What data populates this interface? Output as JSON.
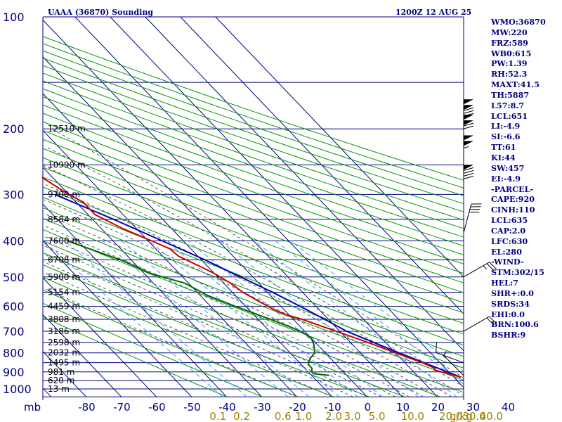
{
  "header": {
    "title": "UAAA (36870) Sounding",
    "valid_time": "1200Z 12 AUG 25"
  },
  "indices": [
    "WMO:36870",
    "MW:220",
    "FRZ:589",
    "WB0:615",
    "PW:1.39",
    "RH:52.3",
    "MAXT:41.5",
    "TH:5887",
    "L57:8.7",
    "LCL:651",
    "LI:-4.9",
    "SI:-6.6",
    "TT:61",
    "KI:44",
    "SW:457",
    "EI:-4.9",
    "-PARCEL-",
    "CAPE:920",
    "CINH:110",
    "LCL:635",
    "CAP:2.0",
    "LFC:630",
    "EL:280",
    "-WIND-",
    "STM:302/15",
    "HEL:7",
    "SHR+:0.0",
    "SRDS:34",
    "EHI:0.0",
    "BRN:100.6",
    "BSHR:9"
  ],
  "colors": {
    "isobar": "#000080",
    "isotherm": "#000080",
    "dry_adiabat": "#009900",
    "moist_adiabat": "#555555",
    "mixing_ratio": "#3399ff",
    "temperature": "#cc0000",
    "dewpoint": "#006600",
    "parcel": "#0000bb",
    "wind": "#000000"
  },
  "chart_data": {
    "type": "skew-t log-p",
    "title": "UAAA (36870) Sounding",
    "xlabel": "",
    "ylabel": "mb",
    "pressure_labels": [
      100,
      200,
      300,
      400,
      500,
      600,
      700,
      800,
      900,
      1000
    ],
    "temperature_ticks": [
      -80,
      -70,
      -60,
      -50,
      -40,
      -30,
      -20,
      -10,
      0,
      10,
      20,
      30,
      40
    ],
    "mixing_ratio_labels": [
      "0.1",
      "0.2",
      "0.6",
      "1.0",
      "2.0",
      "3.0",
      "5.0",
      "10.0",
      "20.0",
      "30.0",
      "40.0"
    ],
    "mixing_ratio_unit": "g/kg",
    "height_labels": [
      {
        "p": 200,
        "text": "12510 m"
      },
      {
        "p": 250,
        "text": "10990 m"
      },
      {
        "p": 300,
        "text": "9700 m"
      },
      {
        "p": 350,
        "text": "8584 m"
      },
      {
        "p": 400,
        "text": "7600 m"
      },
      {
        "p": 450,
        "text": "6708 m"
      },
      {
        "p": 500,
        "text": "5900 m"
      },
      {
        "p": 550,
        "text": "5154 m"
      },
      {
        "p": 600,
        "text": "4459 m"
      },
      {
        "p": 650,
        "text": "3808 m"
      },
      {
        "p": 700,
        "text": "3186 m"
      },
      {
        "p": 750,
        "text": "2598 m"
      },
      {
        "p": 800,
        "text": "2032 m"
      },
      {
        "p": 850,
        "text": "1495 m"
      },
      {
        "p": 900,
        "text": "981 m"
      },
      {
        "p": 950,
        "text": "620 m"
      },
      {
        "p": 1000,
        "text": "13 m"
      }
    ],
    "temperature_profile": [
      {
        "p": 200,
        "t": -45
      },
      {
        "p": 210,
        "t": -44
      },
      {
        "p": 230,
        "t": -41
      },
      {
        "p": 250,
        "t": -37
      },
      {
        "p": 270,
        "t": -33
      },
      {
        "p": 290,
        "t": -31
      },
      {
        "p": 300,
        "t": -30
      },
      {
        "p": 315,
        "t": -28
      },
      {
        "p": 340,
        "t": -28
      },
      {
        "p": 370,
        "t": -24
      },
      {
        "p": 400,
        "t": -19
      },
      {
        "p": 420,
        "t": -16
      },
      {
        "p": 440,
        "t": -15.5
      },
      {
        "p": 470,
        "t": -12
      },
      {
        "p": 490,
        "t": -10
      },
      {
        "p": 520,
        "t": -8
      },
      {
        "p": 550,
        "t": -7
      },
      {
        "p": 580,
        "t": -5
      },
      {
        "p": 610,
        "t": -3
      },
      {
        "p": 630,
        "t": -1
      },
      {
        "p": 650,
        "t": 2.5
      },
      {
        "p": 700,
        "t": 9
      },
      {
        "p": 750,
        "t": 15
      },
      {
        "p": 800,
        "t": 20
      },
      {
        "p": 850,
        "t": 25
      },
      {
        "p": 880,
        "t": 27
      },
      {
        "p": 890,
        "t": 26.5
      },
      {
        "p": 900,
        "t": 28
      },
      {
        "p": 930,
        "t": 32
      }
    ],
    "dewpoint_profile": [
      {
        "p": 200,
        "t": -64
      },
      {
        "p": 210,
        "t": -63
      },
      {
        "p": 230,
        "t": -62
      },
      {
        "p": 250,
        "t": -61
      },
      {
        "p": 300,
        "t": -55
      },
      {
        "p": 330,
        "t": -51
      },
      {
        "p": 360,
        "t": -48
      },
      {
        "p": 400,
        "t": -43
      },
      {
        "p": 450,
        "t": -33
      },
      {
        "p": 490,
        "t": -28
      },
      {
        "p": 520,
        "t": -21
      },
      {
        "p": 560,
        "t": -18
      },
      {
        "p": 600,
        "t": -13
      },
      {
        "p": 650,
        "t": -6.5
      },
      {
        "p": 700,
        "t": -1
      },
      {
        "p": 730,
        "t": 0
      },
      {
        "p": 760,
        "t": -1
      },
      {
        "p": 800,
        "t": -3
      },
      {
        "p": 830,
        "t": -6
      },
      {
        "p": 860,
        "t": -8
      },
      {
        "p": 880,
        "t": -8
      },
      {
        "p": 900,
        "t": -9
      },
      {
        "p": 910,
        "t": -9
      },
      {
        "p": 920,
        "t": -5
      }
    ],
    "parcel_path": [
      {
        "p": 130,
        "t": -97
      },
      {
        "p": 200,
        "t": -61
      },
      {
        "p": 250,
        "t": -46
      },
      {
        "p": 300,
        "t": -34
      },
      {
        "p": 350,
        "t": -24
      },
      {
        "p": 400,
        "t": -16
      },
      {
        "p": 450,
        "t": -9
      },
      {
        "p": 500,
        "t": -3.5
      },
      {
        "p": 550,
        "t": 1.5
      },
      {
        "p": 600,
        "t": 5.5
      },
      {
        "p": 635,
        "t": 8
      },
      {
        "p": 700,
        "t": 12
      },
      {
        "p": 800,
        "t": 21
      },
      {
        "p": 930,
        "t": 32
      }
    ],
    "wind_barbs": [
      {
        "p": 200,
        "dir": 0,
        "kt": 130
      },
      {
        "p": 220,
        "dir": 0,
        "kt": 120
      },
      {
        "p": 250,
        "dir": 0,
        "kt": 105
      },
      {
        "p": 300,
        "dir": 0,
        "kt": 90
      },
      {
        "p": 380,
        "dir": 15,
        "kt": 40
      },
      {
        "p": 500,
        "dir": 60,
        "kt": 25
      },
      {
        "p": 700,
        "dir": 60,
        "kt": 20
      },
      {
        "p": 850,
        "dir": 290,
        "kt": 10
      },
      {
        "p": 920,
        "dir": 315,
        "kt": 5
      }
    ],
    "grid": true
  }
}
